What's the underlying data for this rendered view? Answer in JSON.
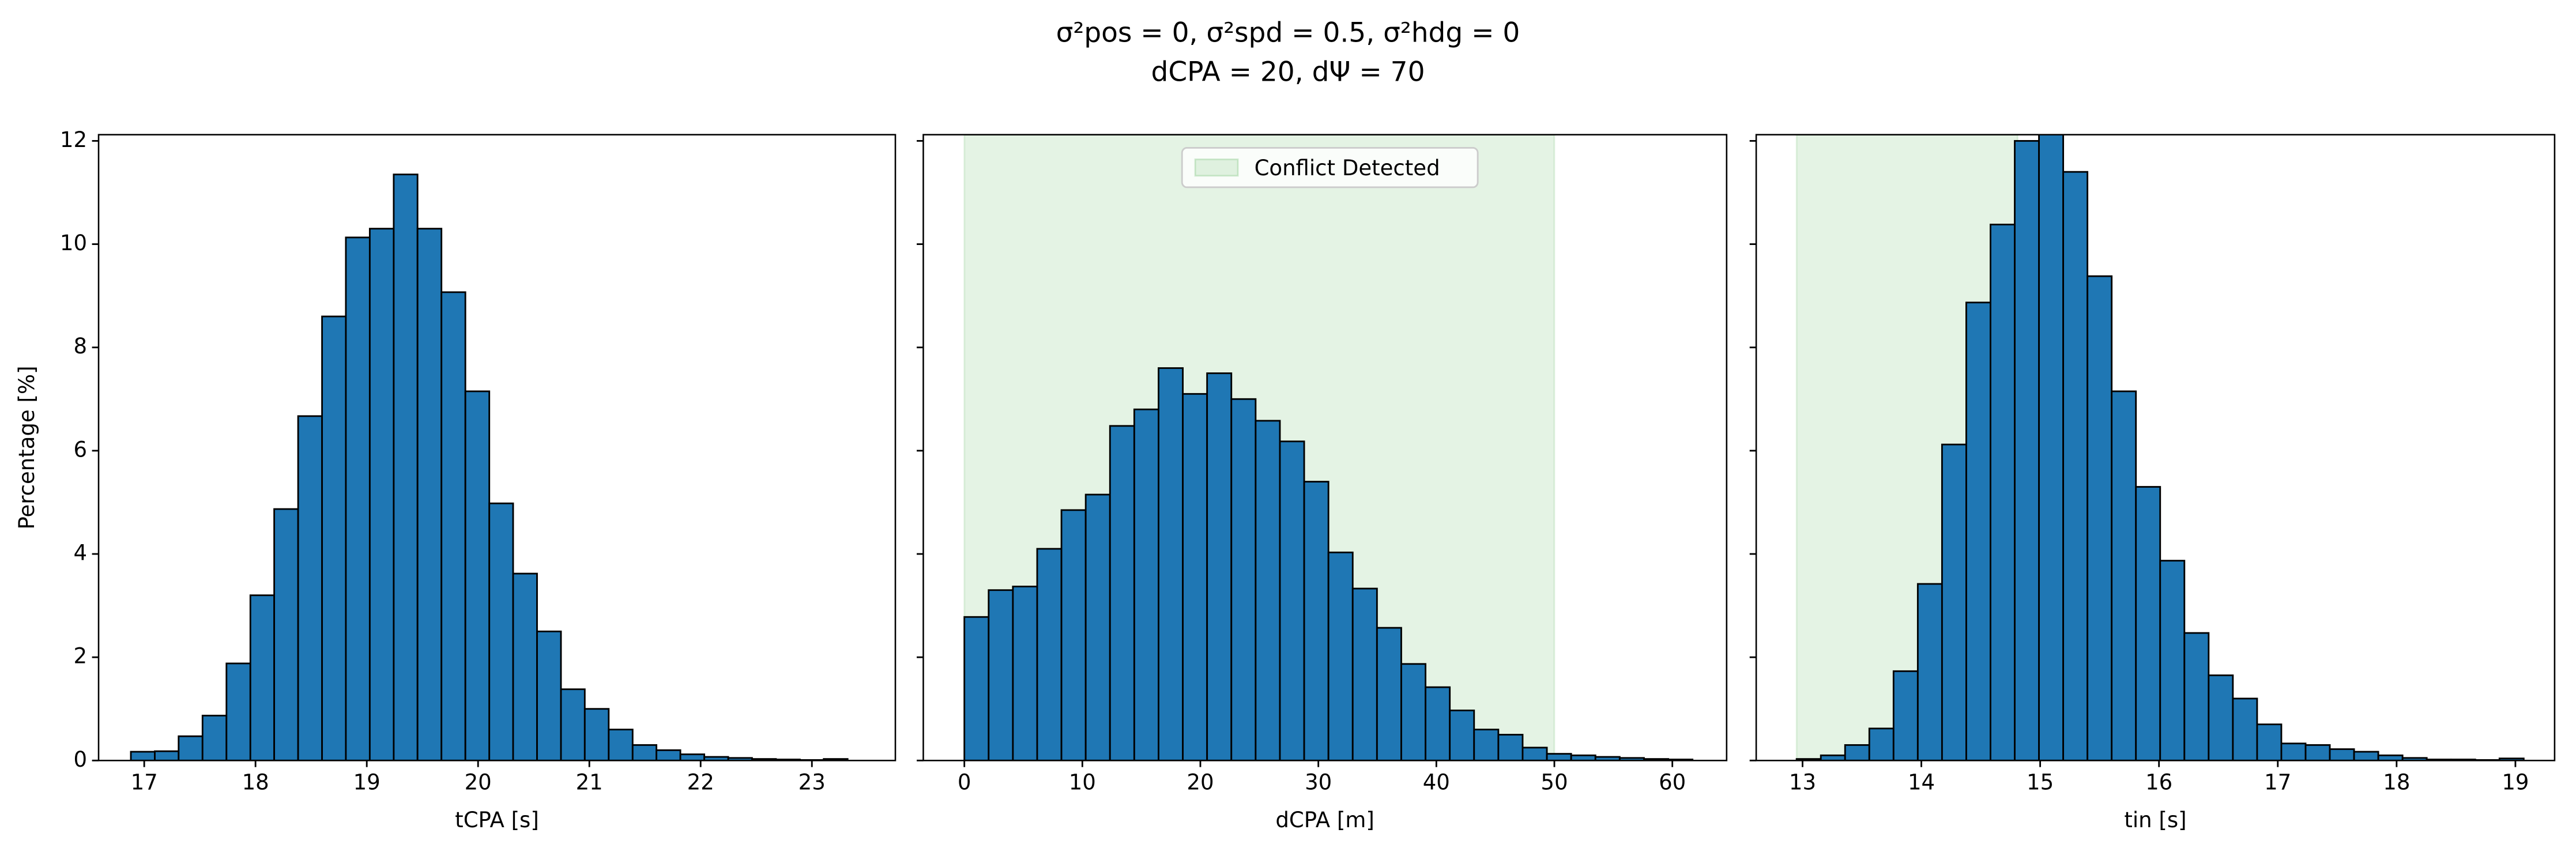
{
  "suptitle": [
    "σ²pos = 0, σ²spd = 0.5, σ²hdg = 0",
    "dCPA = 20, dΨ = 70"
  ],
  "chart_data": [
    {
      "type": "histogram",
      "xlabel": "tCPA [s]",
      "ylabel": "Percentage [%]",
      "color": "#1f77b4",
      "bins": [
        16.88,
        17.095,
        17.309,
        17.524,
        17.739,
        17.954,
        18.168,
        18.383,
        18.598,
        18.812,
        19.027,
        19.242,
        19.456,
        19.671,
        19.886,
        20.101,
        20.315,
        20.53,
        20.745,
        20.959,
        21.174,
        21.389,
        21.603,
        21.818,
        22.033,
        22.248,
        22.462,
        22.677,
        22.892,
        23.106,
        23.321
      ],
      "values": [
        0.17,
        0.18,
        0.47,
        0.87,
        1.88,
        3.2,
        4.87,
        6.67,
        8.6,
        10.13,
        10.3,
        11.35,
        10.3,
        9.07,
        7.15,
        4.98,
        3.62,
        2.5,
        1.38,
        1.0,
        0.6,
        0.3,
        0.2,
        0.12,
        0.07,
        0.05,
        0.03,
        0.02,
        0.01,
        0.03
      ],
      "xlim": [
        16.59,
        23.75
      ],
      "xticks": [
        17,
        18,
        19,
        20,
        21,
        22,
        23
      ],
      "ylim": [
        0,
        12.12
      ],
      "yticks": [
        0,
        2,
        4,
        6,
        8,
        10,
        12
      ]
    },
    {
      "type": "histogram",
      "xlabel": "dCPA [m]",
      "color": "#1f77b4",
      "bins": [
        0,
        2.057,
        4.114,
        6.171,
        8.228,
        10.285,
        12.342,
        14.399,
        16.456,
        18.513,
        20.57,
        22.627,
        24.684,
        26.741,
        28.798,
        30.855,
        32.912,
        34.969,
        37.026,
        39.083,
        41.14,
        43.197,
        45.254,
        47.311,
        49.368,
        51.425,
        53.482,
        55.539,
        57.596,
        59.653,
        61.71
      ],
      "values": [
        2.78,
        3.3,
        3.37,
        4.1,
        4.85,
        5.15,
        6.48,
        6.8,
        7.6,
        7.1,
        7.5,
        7.0,
        6.58,
        6.18,
        5.4,
        4.03,
        3.33,
        2.57,
        1.87,
        1.42,
        0.97,
        0.6,
        0.5,
        0.25,
        0.13,
        0.1,
        0.07,
        0.05,
        0.03,
        0.02
      ],
      "span": {
        "name": "Conflict Detected",
        "range": [
          0,
          50
        ],
        "color": "#2ca02c"
      },
      "legend": "upper center",
      "xlim": [
        -3.48,
        64.6
      ],
      "xticks": [
        0,
        10,
        20,
        30,
        40,
        50,
        60
      ],
      "ylim": [
        0,
        12.12
      ]
    },
    {
      "type": "histogram",
      "xlabel": "tin [s]",
      "color": "#1f77b4",
      "bins": [
        12.95,
        13.154,
        13.358,
        13.562,
        13.766,
        13.97,
        14.174,
        14.378,
        14.582,
        14.786,
        14.99,
        15.194,
        15.398,
        15.602,
        15.806,
        16.01,
        16.214,
        16.418,
        16.622,
        16.826,
        17.03,
        17.234,
        17.438,
        17.642,
        17.846,
        18.05,
        18.254,
        18.458,
        18.662,
        18.866,
        19.07
      ],
      "values": [
        0.03,
        0.1,
        0.3,
        0.62,
        1.73,
        3.42,
        6.12,
        8.87,
        10.38,
        12.0,
        12.15,
        11.4,
        9.38,
        7.15,
        5.3,
        3.87,
        2.47,
        1.65,
        1.2,
        0.7,
        0.33,
        0.3,
        0.22,
        0.17,
        0.1,
        0.05,
        0.02,
        0.02,
        0.01,
        0.04
      ],
      "span": {
        "range": [
          12.95,
          14.81
        ],
        "color": "#2ca02c"
      },
      "xlim": [
        12.61,
        19.33
      ],
      "xticks": [
        13,
        14,
        15,
        16,
        17,
        18,
        19
      ],
      "ylim": [
        0,
        12.12
      ]
    }
  ]
}
